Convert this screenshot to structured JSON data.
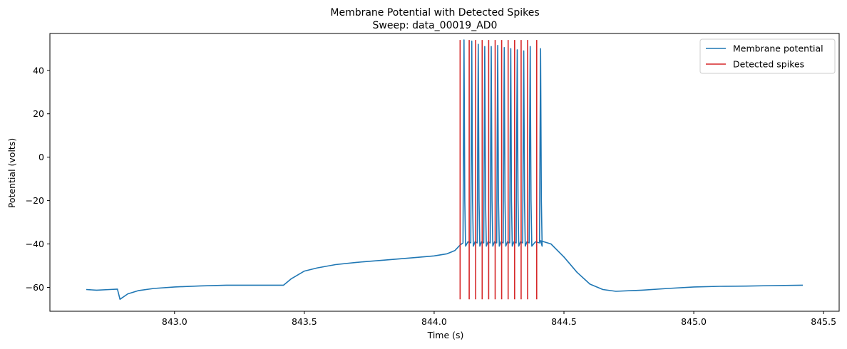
{
  "chart_data": {
    "type": "line",
    "title": "Membrane Potential with Detected Spikes",
    "subtitle": "Sweep: data_00019_AD0",
    "xlabel": "Time (s)",
    "ylabel": "Potential (volts)",
    "xlim": [
      842.52,
      845.56
    ],
    "ylim": [
      -71,
      57
    ],
    "xticks": [
      843.0,
      843.5,
      844.0,
      844.5,
      845.0,
      845.5
    ],
    "xtick_labels": [
      "843.0",
      "843.5",
      "844.0",
      "844.5",
      "845.0",
      "845.5"
    ],
    "yticks": [
      -60,
      -40,
      -20,
      0,
      20,
      40
    ],
    "ytick_labels": [
      "−60",
      "−40",
      "−20",
      "0",
      "20",
      "40"
    ],
    "grid": false,
    "legend_position": "top-right",
    "series": [
      {
        "name": "Membrane potential",
        "color": "#1f77b4",
        "kind": "trace",
        "points": [
          [
            842.66,
            -61.0
          ],
          [
            842.7,
            -61.3
          ],
          [
            842.75,
            -61.0
          ],
          [
            842.78,
            -60.8
          ],
          [
            842.79,
            -65.5
          ],
          [
            842.82,
            -63.0
          ],
          [
            842.86,
            -61.5
          ],
          [
            842.92,
            -60.5
          ],
          [
            843.0,
            -59.8
          ],
          [
            843.1,
            -59.3
          ],
          [
            843.2,
            -59.0
          ],
          [
            843.3,
            -59.0
          ],
          [
            843.42,
            -59.0
          ],
          [
            843.45,
            -56.0
          ],
          [
            843.5,
            -52.5
          ],
          [
            843.55,
            -51.0
          ],
          [
            843.62,
            -49.5
          ],
          [
            843.7,
            -48.5
          ],
          [
            843.8,
            -47.5
          ],
          [
            843.9,
            -46.5
          ],
          [
            844.0,
            -45.5
          ],
          [
            844.05,
            -44.5
          ],
          [
            844.08,
            -43.0
          ],
          [
            844.1,
            -40.5
          ]
        ],
        "post_points": [
          [
            844.41,
            -38.5
          ],
          [
            844.45,
            -40.0
          ],
          [
            844.5,
            -46.0
          ],
          [
            844.55,
            -53.0
          ],
          [
            844.6,
            -58.5
          ],
          [
            844.65,
            -61.0
          ],
          [
            844.7,
            -61.8
          ],
          [
            844.8,
            -61.3
          ],
          [
            844.9,
            -60.5
          ],
          [
            845.0,
            -59.8
          ],
          [
            845.1,
            -59.5
          ],
          [
            845.2,
            -59.4
          ],
          [
            845.3,
            -59.2
          ],
          [
            845.42,
            -59.0
          ]
        ],
        "spike_peaks": [
          [
            844.115,
            54.0
          ],
          [
            844.145,
            53.5
          ],
          [
            844.17,
            52.0
          ],
          [
            844.195,
            51.0
          ],
          [
            844.22,
            51.0
          ],
          [
            844.245,
            51.5
          ],
          [
            844.27,
            50.5
          ],
          [
            844.295,
            50.0
          ],
          [
            844.32,
            49.5
          ],
          [
            844.345,
            49.0
          ],
          [
            844.37,
            51.0
          ],
          [
            844.41,
            50.0
          ]
        ],
        "trough": -41.0
      },
      {
        "name": "Detected spikes",
        "color": "#d62728",
        "kind": "vlines",
        "ymin": -65.5,
        "ymax": 54.0,
        "x": [
          844.1,
          844.135,
          844.16,
          844.185,
          844.21,
          844.235,
          844.26,
          844.285,
          844.31,
          844.335,
          844.36,
          844.395
        ]
      }
    ]
  }
}
